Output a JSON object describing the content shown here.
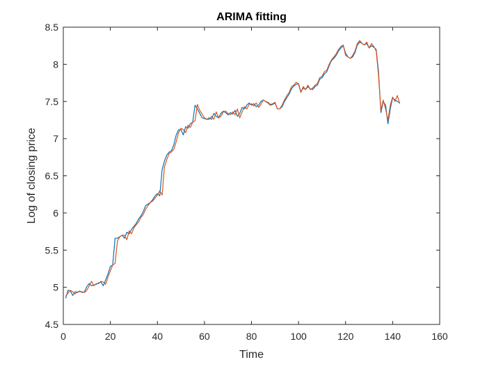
{
  "chart_data": {
    "type": "line",
    "title": "ARIMA fitting",
    "xlabel": "Time",
    "ylabel": "Log of closing price",
    "xlim": [
      0,
      160
    ],
    "ylim": [
      4.5,
      8.5
    ],
    "xticks": [
      0,
      20,
      40,
      60,
      80,
      100,
      120,
      140,
      160
    ],
    "yticks": [
      4.5,
      5,
      5.5,
      6,
      6.5,
      7,
      7.5,
      8,
      8.5
    ],
    "grid": false,
    "legend": "none",
    "colors": {
      "series1": "#0072BD",
      "series2": "#D95319"
    },
    "series": [
      {
        "values": [
          4.85,
          4.96,
          4.95,
          4.89,
          4.94,
          4.93,
          4.95,
          4.93,
          4.94,
          5.01,
          5.05,
          5.02,
          5.03,
          5.04,
          5.06,
          5.07,
          5.02,
          5.1,
          5.18,
          5.28,
          5.3,
          5.66,
          5.66,
          5.68,
          5.7,
          5.66,
          5.74,
          5.72,
          5.78,
          5.82,
          5.86,
          5.92,
          5.96,
          6.02,
          6.1,
          6.12,
          6.14,
          6.18,
          6.23,
          6.26,
          6.23,
          6.58,
          6.7,
          6.78,
          6.82,
          6.84,
          6.92,
          7.05,
          7.12,
          7.12,
          7.05,
          7.16,
          7.14,
          7.2,
          7.22,
          7.45,
          7.4,
          7.34,
          7.28,
          7.27,
          7.26,
          7.28,
          7.26,
          7.34,
          7.3,
          7.28,
          7.34,
          7.37,
          7.35,
          7.32,
          7.35,
          7.33,
          7.38,
          7.3,
          7.34,
          7.42,
          7.4,
          7.45,
          7.48,
          7.45,
          7.47,
          7.43,
          7.45,
          7.5,
          7.52,
          7.5,
          7.48,
          7.45,
          7.46,
          7.48,
          7.4,
          7.4,
          7.43,
          7.5,
          7.55,
          7.6,
          7.67,
          7.71,
          7.73,
          7.74,
          7.63,
          7.68,
          7.66,
          7.7,
          7.67,
          7.66,
          7.7,
          7.72,
          7.8,
          7.82,
          7.87,
          7.9,
          7.98,
          8.05,
          8.08,
          8.12,
          8.18,
          8.22,
          8.25,
          8.15,
          8.1,
          8.08,
          8.1,
          8.16,
          8.26,
          8.3,
          8.28,
          8.26,
          8.28,
          8.22,
          8.25,
          8.23,
          8.2,
          7.9,
          7.35,
          7.5,
          7.45,
          7.2,
          7.4,
          7.55,
          7.52,
          7.5,
          7.48
        ],
        "x_start": 1,
        "x_step": 1
      },
      {
        "values": [
          4.88,
          4.92,
          4.96,
          4.94,
          4.91,
          4.94,
          4.94,
          4.94,
          4.93,
          4.96,
          5.02,
          5.08,
          5.02,
          5.05,
          5.05,
          5.08,
          5.07,
          5.04,
          5.14,
          5.22,
          5.3,
          5.32,
          5.62,
          5.68,
          5.7,
          5.7,
          5.64,
          5.76,
          5.72,
          5.8,
          5.84,
          5.88,
          5.94,
          5.98,
          6.05,
          6.1,
          6.14,
          6.16,
          6.2,
          6.24,
          6.3,
          6.24,
          6.62,
          6.72,
          6.8,
          6.82,
          6.86,
          6.96,
          7.08,
          7.14,
          7.12,
          7.08,
          7.18,
          7.15,
          7.22,
          7.24,
          7.46,
          7.38,
          7.33,
          7.28,
          7.26,
          7.26,
          7.3,
          7.26,
          7.36,
          7.28,
          7.3,
          7.36,
          7.37,
          7.34,
          7.32,
          7.36,
          7.32,
          7.4,
          7.28,
          7.36,
          7.43,
          7.4,
          7.46,
          7.47,
          7.44,
          7.48,
          7.42,
          7.46,
          7.52,
          7.5,
          7.49,
          7.46,
          7.47,
          7.49,
          7.4,
          7.4,
          7.45,
          7.52,
          7.58,
          7.62,
          7.7,
          7.72,
          7.76,
          7.73,
          7.62,
          7.7,
          7.66,
          7.72,
          7.66,
          7.68,
          7.72,
          7.74,
          7.82,
          7.84,
          7.9,
          7.92,
          8.0,
          8.06,
          8.1,
          8.14,
          8.2,
          8.24,
          8.26,
          8.12,
          8.1,
          8.08,
          8.12,
          8.18,
          8.28,
          8.32,
          8.28,
          8.26,
          8.3,
          8.22,
          8.28,
          8.24,
          8.18,
          7.85,
          7.38,
          7.52,
          7.4,
          7.25,
          7.45,
          7.56,
          7.5,
          7.58,
          7.47
        ],
        "x_start": 1,
        "x_step": 1
      }
    ]
  }
}
